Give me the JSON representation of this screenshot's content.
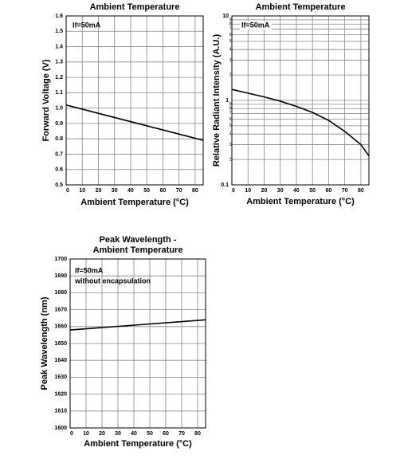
{
  "chart_data": [
    {
      "type": "line",
      "title": [
        "Ambient Temperature"
      ],
      "x_label": "Ambient Temperature (°C)",
      "y_label": "Forward Voltage (V)",
      "annotations": [
        "If=50mA"
      ],
      "x": [
        0,
        85
      ],
      "values": [
        1.02,
        0.79
      ],
      "color": "#000000",
      "xlim": [
        0,
        85
      ],
      "xticks": [
        0,
        10,
        20,
        30,
        40,
        50,
        60,
        70,
        80
      ],
      "ylim": [
        0.5,
        1.6
      ],
      "yticks": [
        0.5,
        0.6,
        0.7,
        0.8,
        0.9,
        {
          "value": 1,
          "label": "1.0"
        },
        1.1,
        1.2,
        1.3,
        1.4,
        1.5,
        1.6
      ],
      "grid": true
    },
    {
      "type": "line",
      "title": [
        "Ambient Temperature"
      ],
      "x_label": "Ambient Temperature (°C)",
      "y_label": "Relative Radiant Intensity (A.U.)",
      "annotations": [
        "If=50mA"
      ],
      "x": [
        0,
        10,
        20,
        30,
        40,
        50,
        60,
        70,
        80,
        85
      ],
      "values": [
        1.35,
        1.22,
        1.1,
        0.98,
        0.85,
        0.72,
        0.58,
        0.43,
        0.3,
        0.22
      ],
      "color": "#000000",
      "xlim": [
        0,
        85
      ],
      "xticks": [
        0,
        10,
        20,
        30,
        40,
        50,
        60,
        70,
        80
      ],
      "ylim": [
        0.1,
        10
      ],
      "log_y": true,
      "yticks": [
        0.1,
        {
          "value": 0.2,
          "label": "2"
        },
        {
          "value": 0.3,
          "label": "3"
        },
        {
          "value": 0.4,
          "label": "4"
        },
        {
          "value": 0.5,
          "label": "5"
        },
        {
          "value": 0.6,
          "label": "6"
        },
        {
          "value": 0.7,
          "label": "7"
        },
        {
          "value": 0.8,
          "label": "8"
        },
        {
          "value": 0.9,
          "label": "9"
        },
        1,
        {
          "value": 2,
          "label": "2"
        },
        {
          "value": 3,
          "label": "3"
        },
        {
          "value": 4,
          "label": "4"
        },
        {
          "value": 5,
          "label": "5"
        },
        {
          "value": 6,
          "label": "6"
        },
        {
          "value": 7,
          "label": "7"
        },
        {
          "value": 8,
          "label": "8"
        },
        {
          "value": 9,
          "label": "9"
        },
        10
      ],
      "grid": true
    },
    {
      "type": "line",
      "title": [
        "Peak Wavelength -",
        "Ambient Temperature"
      ],
      "x_label": "Ambient Temperature (°C)",
      "y_label": "Peak Wavelength (nm)",
      "annotations": [
        "If=50mA",
        "without encapsulation"
      ],
      "x": [
        0,
        85
      ],
      "values": [
        1658,
        1664
      ],
      "color": "#000000",
      "xlim": [
        0,
        85
      ],
      "xticks": [
        0,
        10,
        20,
        30,
        40,
        50,
        60,
        70,
        80
      ],
      "ylim": [
        1600,
        1700
      ],
      "yticks": [
        1600,
        1610,
        1620,
        1630,
        1640,
        1650,
        1660,
        1670,
        1680,
        1690,
        1700
      ],
      "grid": true
    }
  ]
}
